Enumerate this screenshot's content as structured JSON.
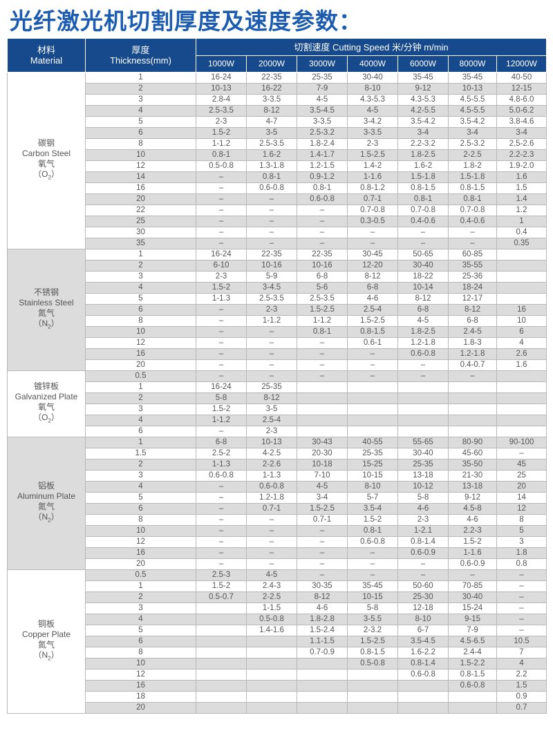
{
  "title": "光纤激光机切割厚度及速度参数：",
  "header": {
    "material_cn": "材料",
    "material_en": "Material",
    "thickness_cn": "厚度",
    "thickness_en": "Thickness(mm)",
    "speed": "切割速度 Cutting Speed  米/分钟 m/min",
    "powers": [
      "1000W",
      "2000W",
      "3000W",
      "4000W",
      "6000W",
      "8000W",
      "12000W"
    ]
  },
  "colors": {
    "header_bg": "#174a8c",
    "title": "#1c5cb0",
    "stripe": "#dcdcdc"
  },
  "materials": [
    {
      "name_cn": "碳钢",
      "name_en": "Carbon Steel",
      "gas_cn": "氧气",
      "gas": "O",
      "gas_sub": "2",
      "rows": [
        [
          "1",
          "16-24",
          "22-35",
          "25-35",
          "30-40",
          "35-45",
          "35-45",
          "40-50"
        ],
        [
          "2",
          "10-13",
          "16-22",
          "7-9",
          "8-10",
          "9-12",
          "10-13",
          "12-15"
        ],
        [
          "3",
          "2.8-4",
          "3-3.5",
          "4-5",
          "4.3-5.3",
          "4.3-5.3",
          "4.5-5.5",
          "4.8-6.0"
        ],
        [
          "4",
          "2.5-3.5",
          "8-12",
          "3.5-4.5",
          "4-5",
          "4.2-5.5",
          "4.5-5.5",
          "5.0-6.2"
        ],
        [
          "5",
          "2-3",
          "4-7",
          "3-3.5",
          "3-4.2",
          "3.5-4.2",
          "3.5-4.2",
          "3.8-4.6"
        ],
        [
          "6",
          "1.5-2",
          "3-5",
          "2.5-3.2",
          "3-3.5",
          "3-4",
          "3-4",
          "3-4"
        ],
        [
          "8",
          "1-1.2",
          "2.5-3.5",
          "1.8-2.4",
          "2-3",
          "2.2-3.2",
          "2.5-3.2",
          "2.5-2.6"
        ],
        [
          "10",
          "0.8-1",
          "1.6-2",
          "1.4-1.7",
          "1.5-2.5",
          "1.8-2.5",
          "2-2.5",
          "2.2-2.3"
        ],
        [
          "12",
          "0.5-0.8",
          "1.3-1.8",
          "1.2-1.5",
          "1.4-2",
          "1.6-2",
          "1.8-2",
          "1.9-2.0"
        ],
        [
          "14",
          "–",
          "0.8-1",
          "0.9-1.2",
          "1-1.6",
          "1.5-1.8",
          "1.5-1.8",
          "1.6"
        ],
        [
          "16",
          "–",
          "0.6-0.8",
          "0.8-1",
          "0.8-1.2",
          "0.8-1.5",
          "0.8-1.5",
          "1.5"
        ],
        [
          "20",
          "–",
          "–",
          "0.6-0.8",
          "0.7-1",
          "0.8-1",
          "0.8-1",
          "1.4"
        ],
        [
          "22",
          "–",
          "–",
          "–",
          "0.7-0.8",
          "0.7-0.8",
          "0.7-0.8",
          "1.2"
        ],
        [
          "25",
          "–",
          "–",
          "–",
          "0.3-0.5",
          "0.4-0.6",
          "0.4-0.6",
          "1"
        ],
        [
          "30",
          "–",
          "–",
          "–",
          "–",
          "–",
          "–",
          "0.4"
        ],
        [
          "35",
          "–",
          "–",
          "–",
          "–",
          "–",
          "–",
          "0.35"
        ]
      ]
    },
    {
      "name_cn": "不锈钢",
      "name_en": "Stainless Steel",
      "gas_cn": "氮气",
      "gas": "N",
      "gas_sub": "2",
      "rows": [
        [
          "1",
          "16-24",
          "22-35",
          "22-35",
          "30-45",
          "50-65",
          "60-85",
          ""
        ],
        [
          "2",
          "6-10",
          "10-16",
          "10-16",
          "12-20",
          "30-40",
          "35-55",
          ""
        ],
        [
          "3",
          "2-3",
          "5-9",
          "6-8",
          "8-12",
          "18-22",
          "25-36",
          ""
        ],
        [
          "4",
          "1.5-2",
          "3-4.5",
          "5-6",
          "6-8",
          "10-14",
          "18-24",
          ""
        ],
        [
          "5",
          "1-1.3",
          "2.5-3.5",
          "2.5-3.5",
          "4-6",
          "8-12",
          "12-17",
          ""
        ],
        [
          "6",
          "–",
          "2-3",
          "1.5-2.5",
          "2.5-4",
          "6-8",
          "8-12",
          "16"
        ],
        [
          "8",
          "–",
          "1-1.2",
          "1-1.2",
          "1.5-2.5",
          "4-5",
          "6-8",
          "10"
        ],
        [
          "10",
          "–",
          "–",
          "0.8-1",
          "0.8-1.5",
          "1.8-2.5",
          "2.4-5",
          "6"
        ],
        [
          "12",
          "–",
          "–",
          "–",
          "0.6-1",
          "1.2-1.8",
          "1.8-3",
          "4"
        ],
        [
          "16",
          "–",
          "–",
          "–",
          "–",
          "0.6-0.8",
          "1.2-1.8",
          "2.6"
        ],
        [
          "20",
          "–",
          "–",
          "–",
          "–",
          "–",
          "0.4-0.7",
          "1.6"
        ]
      ]
    },
    {
      "name_cn": "镀锌板",
      "name_en": "Galvanized Plate",
      "gas_cn": "氧气",
      "gas": "O",
      "gas_sub": "2",
      "rows": [
        [
          "0.5",
          "–",
          "–",
          "–",
          "–",
          "–",
          "–",
          ""
        ],
        [
          "1",
          "16-24",
          "25-35",
          "",
          "",
          "",
          "",
          ""
        ],
        [
          "2",
          "5-8",
          "8-12",
          "",
          "",
          "",
          "",
          ""
        ],
        [
          "3",
          "1.5-2",
          "3-5",
          "",
          "",
          "",
          "",
          ""
        ],
        [
          "4",
          "1-1.2",
          "2.5-4",
          "",
          "",
          "",
          "",
          ""
        ],
        [
          "6",
          "–",
          "2-3",
          "",
          "",
          "",
          "",
          ""
        ]
      ]
    },
    {
      "name_cn": "铝板",
      "name_en": "Aluminum Plate",
      "gas_cn": "氮气",
      "gas": "N",
      "gas_sub": "2",
      "rows": [
        [
          "1",
          "6-8",
          "10-13",
          "30-43",
          "40-55",
          "55-65",
          "80-90",
          "90-100"
        ],
        [
          "1.5",
          "2.5-2",
          "4-2.5",
          "20-30",
          "25-35",
          "30-40",
          "45-60",
          "–"
        ],
        [
          "2",
          "1-1.3",
          "2-2.6",
          "10-18",
          "15-25",
          "25-35",
          "35-50",
          "45"
        ],
        [
          "3",
          "0.6-0.8",
          "1-1.3",
          "7-10",
          "10-15",
          "13-18",
          "21-30",
          "25"
        ],
        [
          "4",
          "–",
          "0.6-0.8",
          "4-5",
          "8-10",
          "10-12",
          "13-18",
          "20"
        ],
        [
          "5",
          "–",
          "1.2-1.8",
          "3-4",
          "5-7",
          "5-8",
          "9-12",
          "14"
        ],
        [
          "6",
          "–",
          "0.7-1",
          "1.5-2.5",
          "3.5-4",
          "4-6",
          "4.5-8",
          "12"
        ],
        [
          "8",
          "–",
          "–",
          "0.7-1",
          "1.5-2",
          "2-3",
          "4-6",
          "8"
        ],
        [
          "10",
          "–",
          "–",
          "–",
          "0.8-1",
          "1-2.1",
          "2.2-3",
          "5"
        ],
        [
          "12",
          "–",
          "–",
          "–",
          "0.6-0.8",
          "0.8-1.4",
          "1.5-2",
          "3"
        ],
        [
          "16",
          "–",
          "–",
          "–",
          "–",
          "0.6-0.9",
          "1-1.6",
          "1.8"
        ],
        [
          "20",
          "–",
          "–",
          "–",
          "–",
          "–",
          "0.6-0.9",
          "0.8"
        ]
      ]
    },
    {
      "name_cn": "铜板",
      "name_en": "Copper Plate",
      "gas_cn": "氮气",
      "gas": "N",
      "gas_sub": "2",
      "rows": [
        [
          "0.5",
          "2.5-3",
          "4-5",
          "–",
          "–",
          "–",
          "–",
          "–"
        ],
        [
          "1",
          "1.5-2",
          "2.4-3",
          "30-35",
          "35-45",
          "50-60",
          "70-85",
          "–"
        ],
        [
          "2",
          "0.5-0.7",
          "2-2.5",
          "8-12",
          "10-15",
          "25-30",
          "30-40",
          "–"
        ],
        [
          "3",
          "",
          "1-1.5",
          "4-6",
          "5-8",
          "12-18",
          "15-24",
          "–"
        ],
        [
          "4",
          "",
          "0.5-0.8",
          "1.8-2.8",
          "3-5.5",
          "8-10",
          "9-15",
          "–"
        ],
        [
          "5",
          "",
          "1.4-1.6",
          "1.5-2.4",
          "2-3.2",
          "6-7",
          "7-9",
          "–"
        ],
        [
          "6",
          "",
          "",
          "1.1-1.5",
          "1.5-2.5",
          "3.5-4.5",
          "4.5-6.5",
          "10.5"
        ],
        [
          "8",
          "",
          "",
          "0.7-0.9",
          "0.8-1.5",
          "1.6-2.2",
          "2.4-4",
          "7"
        ],
        [
          "10",
          "",
          "",
          "",
          "0.5-0.8",
          "0.8-1.4",
          "1.5-2.2",
          "4"
        ],
        [
          "12",
          "",
          "",
          "",
          "",
          "0.6-0.8",
          "0.8-1.5",
          "2.2"
        ],
        [
          "16",
          "",
          "",
          "",
          "",
          "",
          "0.6-0.8",
          "1.5"
        ],
        [
          "18",
          "",
          "",
          "",
          "",
          "",
          "",
          "0.9"
        ],
        [
          "20",
          "",
          "",
          "",
          "",
          "",
          "",
          "0.7"
        ]
      ]
    }
  ]
}
